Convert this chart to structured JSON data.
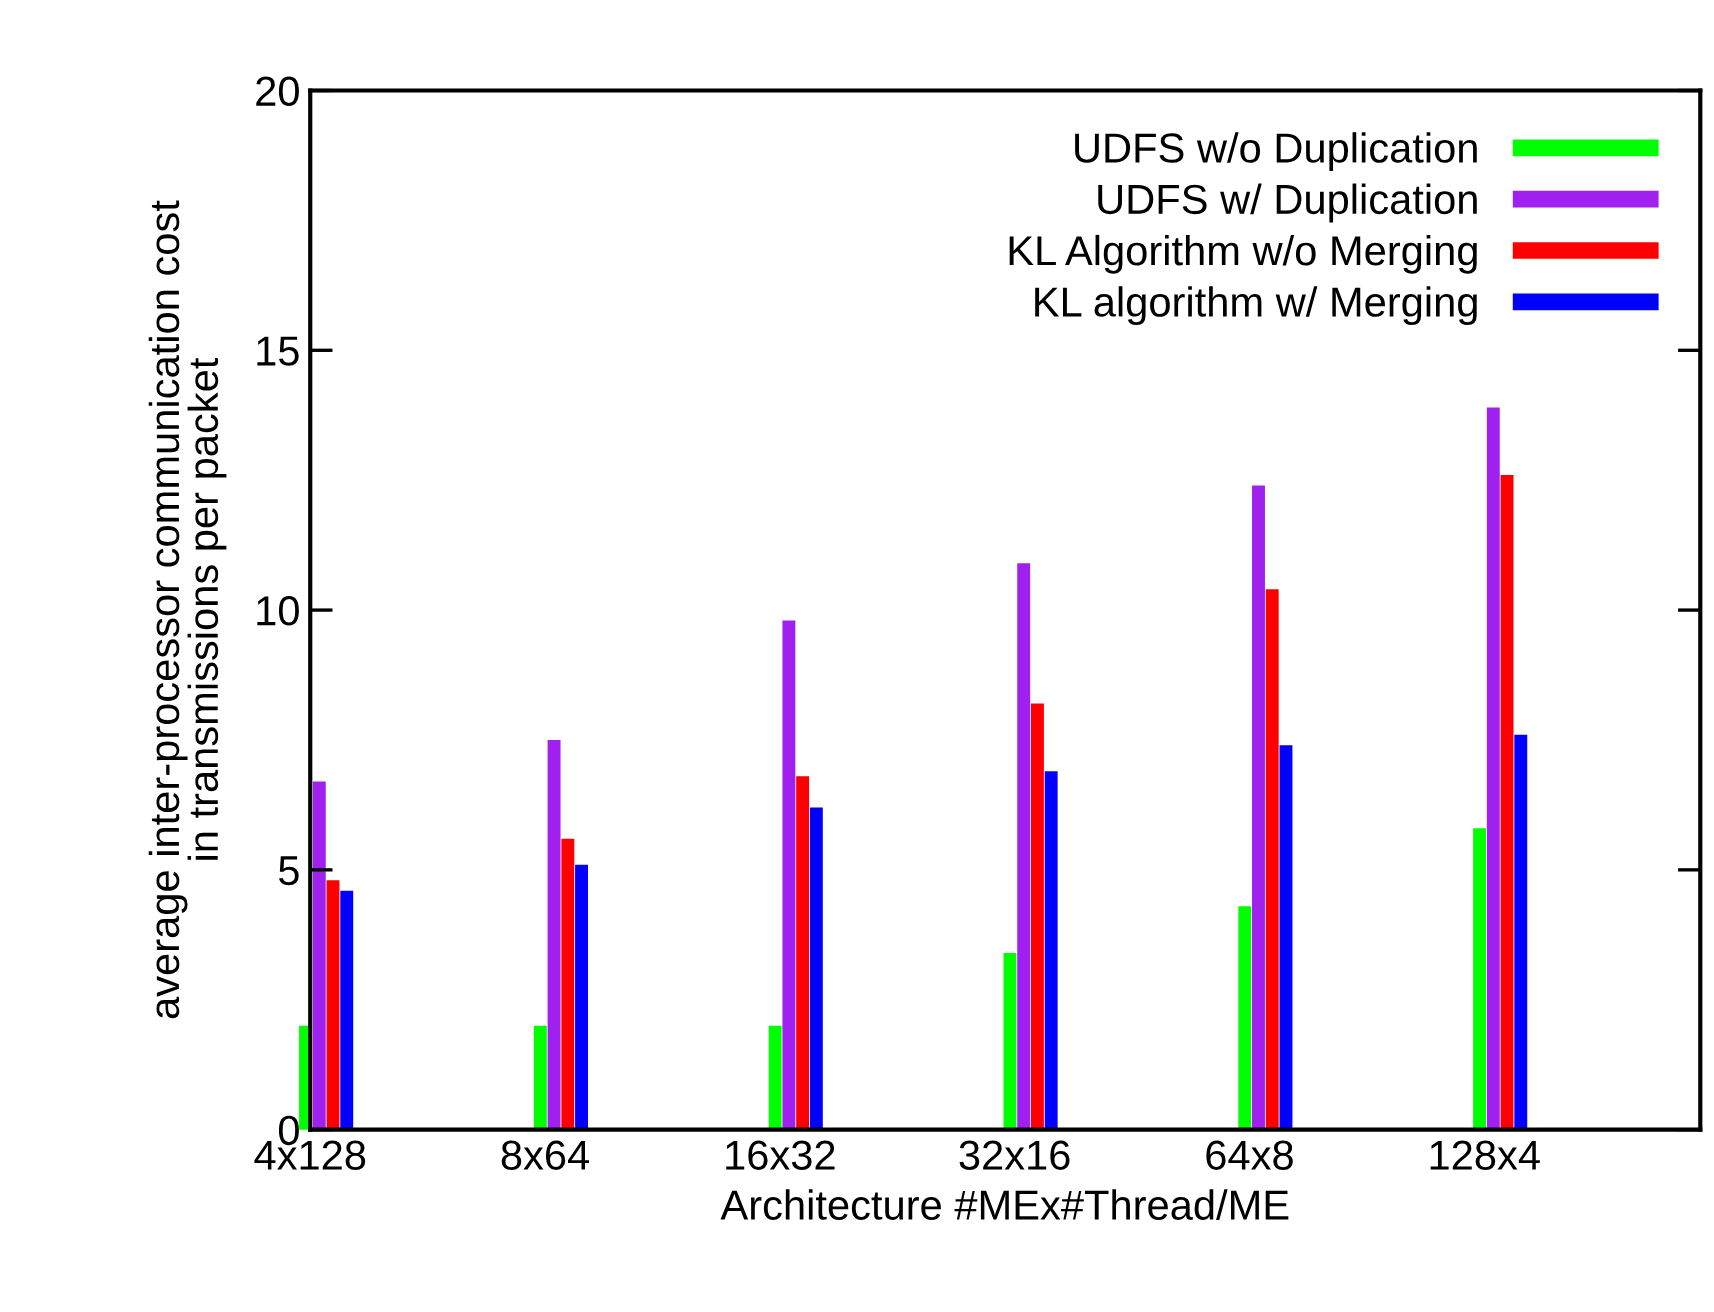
{
  "chart_data": {
    "type": "bar",
    "xlabel": "Architecture #MEx#Thread/ME",
    "ylabel": "average inter-processor communication cost\nin transmissions per packet",
    "categories": [
      "4x128",
      "8x64",
      "16x32",
      "32x16",
      "64x8",
      "128x4"
    ],
    "series": [
      {
        "name": "UDFS w/o Duplication",
        "color": "#00ff00",
        "values": [
          2.0,
          2.0,
          2.0,
          3.4,
          4.3,
          5.8
        ]
      },
      {
        "name": "UDFS w/ Duplication",
        "color": "#a020f0",
        "values": [
          6.7,
          7.5,
          9.8,
          10.9,
          12.4,
          13.9
        ]
      },
      {
        "name": "KL Algorithm w/o Merging",
        "color": "#ff0000",
        "values": [
          4.8,
          5.6,
          6.8,
          8.2,
          10.4,
          12.6
        ]
      },
      {
        "name": "KL algorithm w/ Merging",
        "color": "#0000ff",
        "values": [
          4.6,
          5.1,
          6.2,
          6.9,
          7.4,
          7.6
        ]
      }
    ],
    "ylim": [
      0,
      20
    ],
    "yticks": [
      0,
      5,
      10,
      15,
      20
    ],
    "grid": false,
    "legend": "top right"
  }
}
